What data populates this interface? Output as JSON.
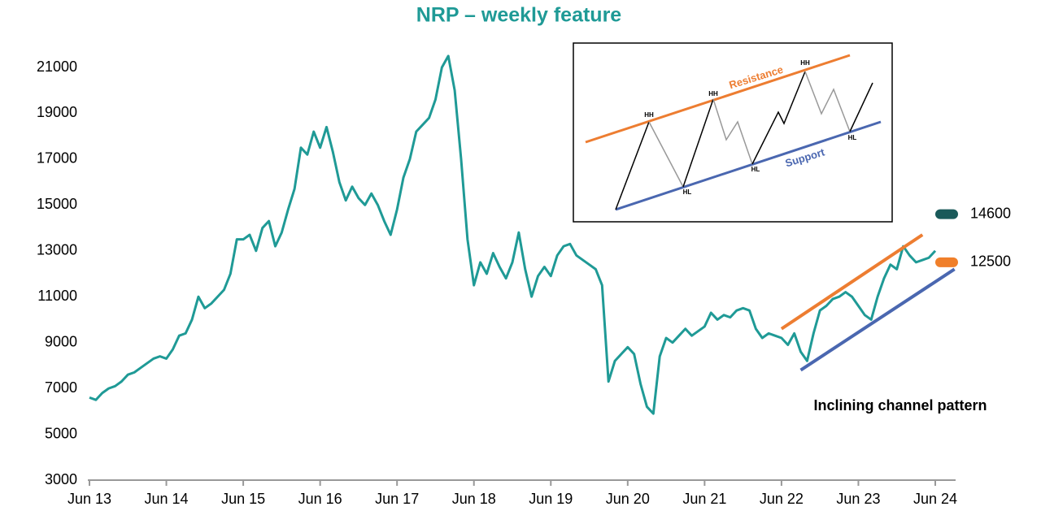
{
  "chart_data": {
    "type": "line",
    "title": "NRP – weekly feature",
    "categories": [
      "Jun 13",
      null,
      null,
      null,
      null,
      null,
      null,
      null,
      null,
      null,
      null,
      null,
      "Jun 14",
      null,
      null,
      null,
      null,
      null,
      null,
      null,
      null,
      null,
      null,
      null,
      "Jun 15",
      null,
      null,
      null,
      null,
      null,
      null,
      null,
      null,
      null,
      null,
      null,
      "Jun 16",
      null,
      null,
      null,
      null,
      null,
      null,
      null,
      null,
      null,
      null,
      null,
      "Jun 17",
      null,
      null,
      null,
      null,
      null,
      null,
      null,
      null,
      null,
      null,
      null,
      "Jun 18",
      null,
      null,
      null,
      null,
      null,
      null,
      null,
      null,
      null,
      null,
      null,
      "Jun 19",
      null,
      null,
      null,
      null,
      null,
      null,
      null,
      null,
      null,
      null,
      null,
      "Jun 20",
      null,
      null,
      null,
      null,
      null,
      null,
      null,
      null,
      null,
      null,
      null,
      "Jun 21",
      null,
      null,
      null,
      null,
      null,
      null,
      null,
      null,
      null,
      null,
      null,
      "Jun 22",
      null,
      null,
      null,
      null,
      null,
      null,
      null,
      null,
      null,
      null,
      null,
      "Jun 23",
      null,
      null,
      null,
      null,
      null,
      null,
      null,
      null,
      null,
      null,
      null,
      "Jun 24"
    ],
    "values": [
      6600,
      6500,
      6800,
      7000,
      7100,
      7300,
      7600,
      7700,
      7900,
      8100,
      8300,
      8400,
      8300,
      8700,
      9300,
      9400,
      10000,
      11000,
      10500,
      10700,
      11000,
      11300,
      12000,
      13500,
      13500,
      13700,
      13000,
      14000,
      14300,
      13200,
      13800,
      14800,
      15700,
      17500,
      17200,
      18200,
      17500,
      18400,
      17300,
      16000,
      15200,
      15800,
      15300,
      15000,
      15500,
      15000,
      14300,
      13700,
      14800,
      16200,
      17000,
      18200,
      18500,
      18800,
      19600,
      21000,
      21500,
      20000,
      17000,
      13500,
      11500,
      12500,
      12000,
      12900,
      12300,
      11800,
      12500,
      13800,
      12200,
      11000,
      11900,
      12300,
      11900,
      12800,
      13200,
      13300,
      12800,
      12600,
      12400,
      12200,
      11500,
      7300,
      8200,
      8500,
      8800,
      8500,
      7200,
      6200,
      5900,
      8400,
      9200,
      9000,
      9300,
      9600,
      9300,
      9500,
      9700,
      10300,
      10000,
      10200,
      10100,
      10400,
      10500,
      10400,
      9600,
      9200,
      9400,
      9300,
      9200,
      8900,
      9400,
      8600,
      8200,
      9400,
      10400,
      10600,
      10900,
      11000,
      11200,
      11000,
      10600,
      10200,
      10000,
      11000,
      11800,
      12400,
      12200,
      13200,
      12800,
      12500,
      12600,
      12700,
      13000
    ],
    "color": "#1f9a96",
    "ylim": [
      3000,
      21000
    ],
    "yticks": [
      3000,
      5000,
      7000,
      9000,
      11000,
      13000,
      15000,
      17000,
      19000,
      21000
    ],
    "channel_lines": [
      {
        "x": [
          108,
          130
        ],
        "values": [
          9600,
          13700
        ],
        "color": "#ed7d31"
      },
      {
        "x": [
          111,
          135
        ],
        "values": [
          7800,
          12200
        ],
        "color": "#4a67b0"
      }
    ],
    "markers": [
      {
        "value": 14600,
        "color": "#1a5a5a"
      },
      {
        "value": 12500,
        "color": "#f07f2a"
      }
    ],
    "annotation": "Inclining channel pattern",
    "inset": {
      "resistance": "Resistance",
      "support": "Support",
      "hh": [
        "HH",
        "HH",
        "HH"
      ],
      "hl": [
        "HL",
        "HL",
        "HL"
      ]
    }
  }
}
